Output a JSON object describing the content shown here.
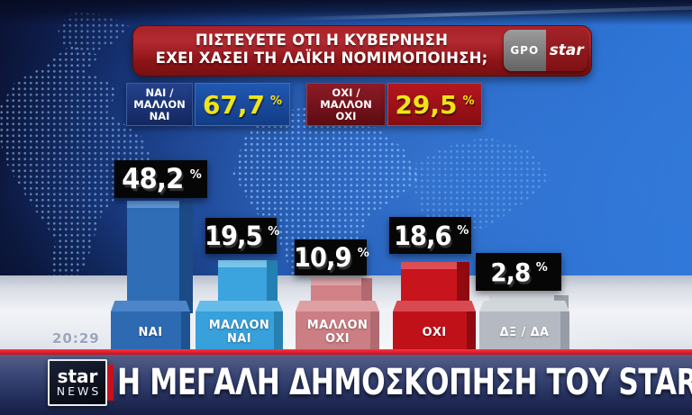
{
  "header": {
    "question_line1": "ΠΙΣΤΕΥΕΤΕ ΟΤΙ Η ΚΥΒΕΡΝΗΣΗ",
    "question_line2": "ΕΧΕΙ ΧΑΣΕΙ ΤΗ ΛΑΪΚΗ ΝΟΜΙΜΟΠΟΙΗΣΗ;",
    "logo": {
      "gpo": "GPO",
      "star": "star"
    }
  },
  "summary": {
    "yes": {
      "line1": "ΝΑΙ /",
      "line2": "ΜΑΛΛΟΝ",
      "line3": "ΝΑΙ",
      "value": "67,7",
      "pct": "%"
    },
    "no": {
      "line1": "ΟΧΙ /",
      "line2": "ΜΑΛΛΟΝ",
      "line3": "ΟΧΙ",
      "value": "29,5",
      "pct": "%"
    }
  },
  "chart_data": {
    "type": "bar",
    "title": "ΠΙΣΤΕΥΕΤΕ ΟΤΙ Η ΚΥΒΕΡΝΗΣΗ ΕΧΕΙ ΧΑΣΕΙ ΤΗ ΛΑΪΚΗ ΝΟΜΙΜΟΠΟΙΗΣΗ;",
    "unit": "%",
    "categories": [
      "ΝΑΙ",
      "ΜΑΛΛΟΝ ΝΑΙ",
      "ΜΑΛΛΟΝ ΟΧΙ",
      "ΟΧΙ",
      "ΔΞ / ΔΑ"
    ],
    "values": [
      48.2,
      19.5,
      10.9,
      18.6,
      2.8
    ],
    "value_labels": [
      "48,2",
      "19,5",
      "10,9",
      "18,6",
      "2,8"
    ],
    "bar_colors": [
      "#2f6db6",
      "#3ba3dd",
      "#d08287",
      "#c8141c",
      "#b9bec6"
    ],
    "aggregates": {
      "yes_total": 67.7,
      "no_total": 29.5
    },
    "ylim": [
      0,
      50
    ],
    "grid": false,
    "legend": "none"
  },
  "footer": {
    "timestamp": "20:29",
    "channel_logo": {
      "star": "star",
      "news": "NEWS"
    },
    "headline": "Η ΜΕΓΑΛΗ ΔΗΜΟΣΚΟΠΗΣΗ ΤΟΥ STAR"
  },
  "colors": {
    "accent_red": "#c8141c",
    "accent_blue": "#2f6db6",
    "yellow_value": "#f0e418",
    "banner_red_line": "#e0242c",
    "black_tag": "#060606"
  }
}
